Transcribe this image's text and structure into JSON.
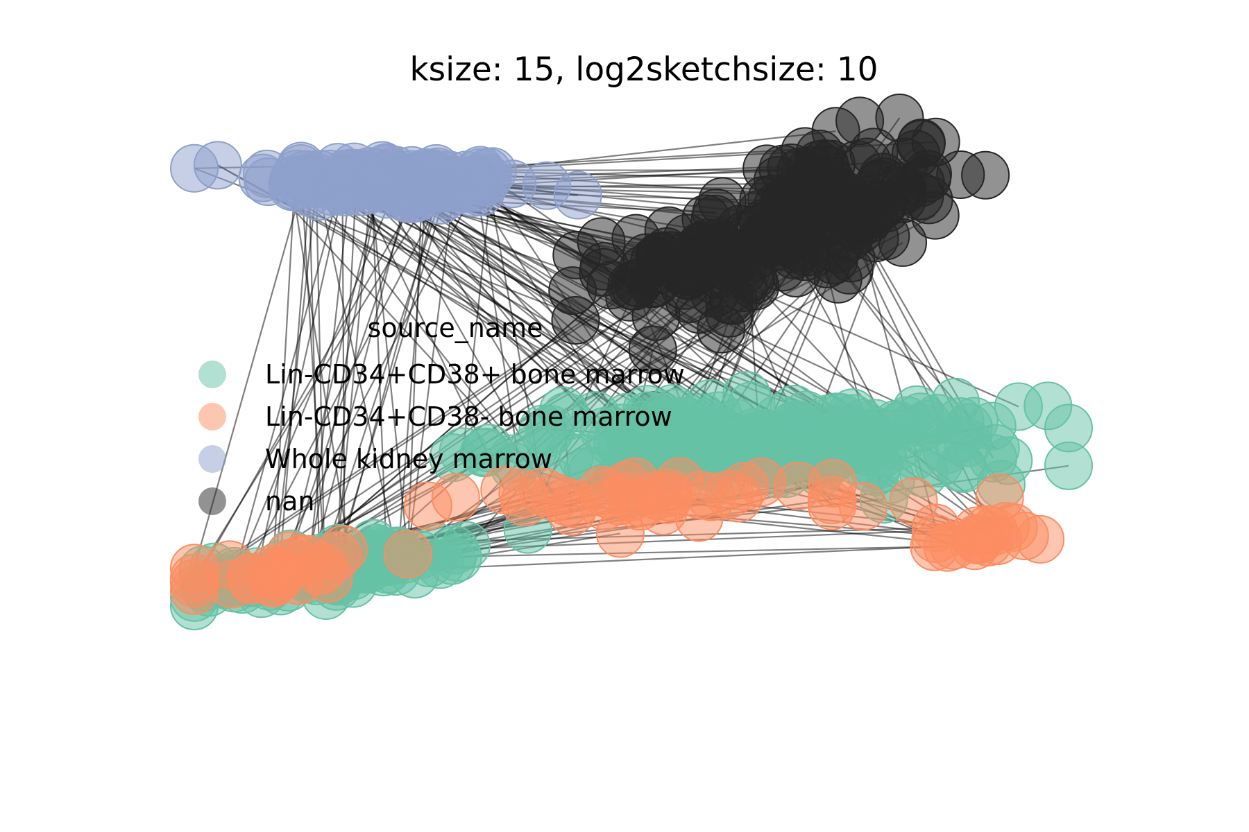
{
  "chart_data": {
    "type": "scatter",
    "subtype": "network-graph",
    "title": "ksize: 15, log2sketchsize: 10",
    "xlabel": "",
    "ylabel": "",
    "axes_visible": false,
    "grid": false,
    "legend": {
      "title": "source_name",
      "placement": "center-left",
      "entries": [
        {
          "label": "Lin-CD34+CD38+ bone marrow",
          "color": "#66c2a5"
        },
        {
          "label": "Lin-CD34+CD38- bone marrow",
          "color": "#fc8d62"
        },
        {
          "label": "Whole kidney marrow",
          "color": "#8da0cb"
        },
        {
          "label": "nan",
          "color": "#262626"
        }
      ]
    },
    "series": [
      {
        "name": "Whole kidney marrow",
        "color": "#8da0cb",
        "clusters": [
          {
            "cx": -0.55,
            "cy": 0.78,
            "sx": 0.28,
            "sy": 0.06,
            "n": 130,
            "tilt": -0.05
          }
        ]
      },
      {
        "name": "nan",
        "color": "#262626",
        "clusters": [
          {
            "cx": 0.35,
            "cy": 0.62,
            "sx": 0.35,
            "sy": 0.22,
            "n": 180,
            "tilt": 0.45
          }
        ]
      },
      {
        "name": "Lin-CD34+CD38+ bone marrow",
        "color": "#66c2a5",
        "clusters": [
          {
            "cx": 0.3,
            "cy": -0.12,
            "sx": 0.55,
            "sy": 0.12,
            "n": 190,
            "tilt": 0.0
          },
          {
            "cx": -0.7,
            "cy": -0.55,
            "sx": 0.28,
            "sy": 0.06,
            "n": 90,
            "tilt": 0.2
          }
        ]
      },
      {
        "name": "Lin-CD34+CD38- bone marrow",
        "color": "#fc8d62",
        "clusters": [
          {
            "cx": 0.1,
            "cy": -0.3,
            "sx": 0.45,
            "sy": 0.06,
            "n": 40,
            "tilt": 0.0
          },
          {
            "cx": -0.8,
            "cy": -0.55,
            "sx": 0.18,
            "sy": 0.05,
            "n": 25,
            "tilt": 0.2
          },
          {
            "cx": 0.8,
            "cy": -0.45,
            "sx": 0.1,
            "sy": 0.05,
            "n": 18,
            "tilt": 0.0
          }
        ]
      }
    ],
    "edges": {
      "color": "#000000",
      "opacity": 0.5,
      "count": 260
    }
  }
}
